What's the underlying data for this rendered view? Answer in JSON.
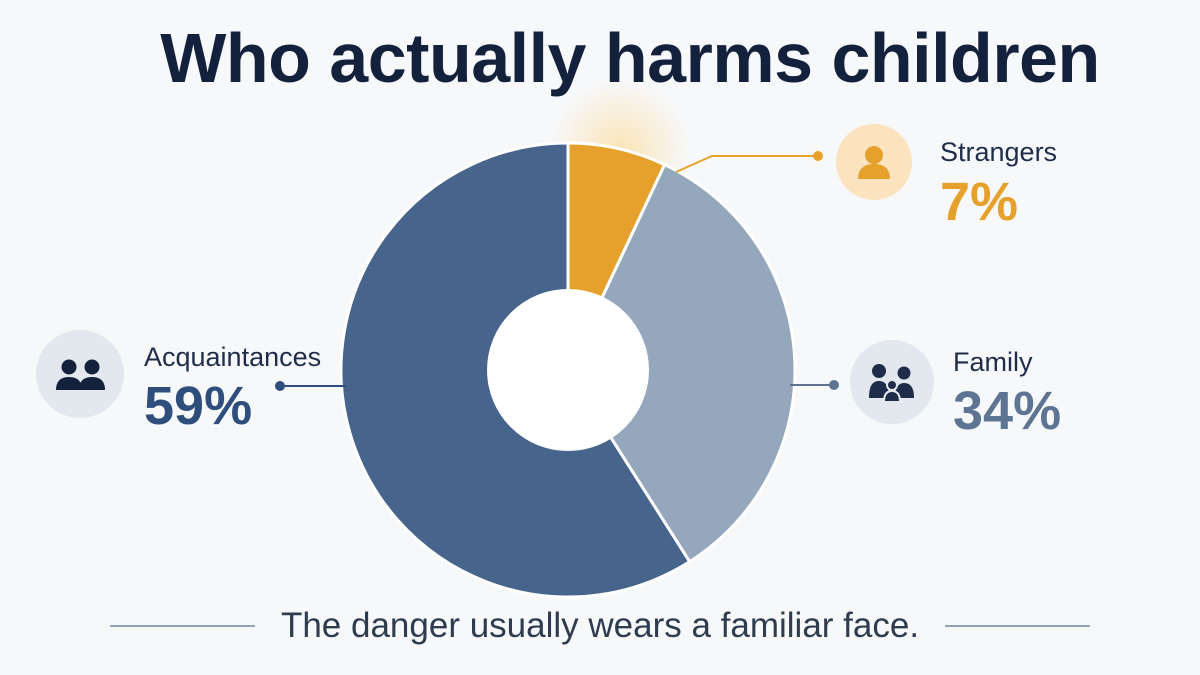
{
  "chart_data": {
    "type": "pie",
    "title": "Who actually harms children",
    "categories": [
      "Strangers",
      "Family",
      "Acquaintances"
    ],
    "values": [
      7,
      34,
      59
    ],
    "value_labels": [
      "7%",
      "34%",
      "59%"
    ],
    "colors": [
      "#e5a12b",
      "#95a7bd",
      "#46648c"
    ],
    "donut": true,
    "legend": "callout labels beside slices"
  },
  "callouts": {
    "strangers": {
      "label": "Strangers",
      "value": "7%",
      "icon": "person-icon",
      "color": "#e5a12b"
    },
    "family": {
      "label": "Family",
      "value": "34%",
      "icon": "family-icon",
      "color": "#5e7493"
    },
    "acquaintances": {
      "label": "Acquaintances",
      "value": "59%",
      "icon": "two-people-icon",
      "color": "#2e4f7c"
    }
  },
  "tagline": "The danger usually wears a familiar face."
}
